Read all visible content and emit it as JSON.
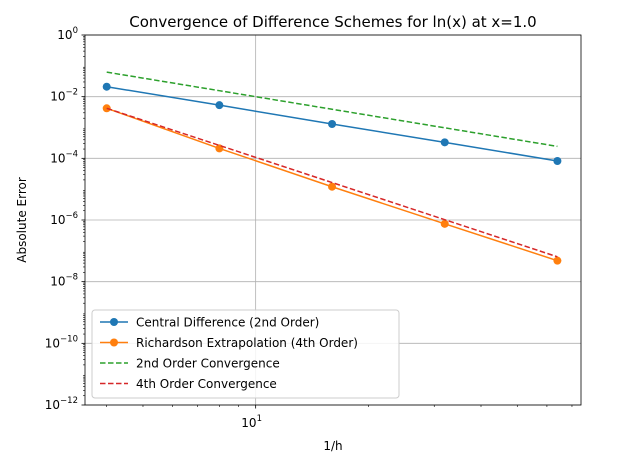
{
  "chart_data": {
    "type": "line",
    "title": "Convergence of Difference Schemes for ln(x) at x=1.0",
    "xlabel": "1/h",
    "ylabel": "Absolute Error",
    "xscale": "log",
    "yscale": "log",
    "xlim": [
      3.5,
      74
    ],
    "ylim": [
      1e-12,
      1
    ],
    "grid": true,
    "legend_position": "lower-left",
    "x_ticks": [
      {
        "value": 10,
        "base": "10",
        "exp": "1"
      }
    ],
    "y_ticks": [
      {
        "value": 1,
        "base": "10",
        "exp": "0"
      },
      {
        "value": 0.01,
        "base": "10",
        "exp": "−2"
      },
      {
        "value": 0.0001,
        "base": "10",
        "exp": "−4"
      },
      {
        "value": 1e-06,
        "base": "10",
        "exp": "−6"
      },
      {
        "value": 1e-08,
        "base": "10",
        "exp": "−8"
      },
      {
        "value": 1e-10,
        "base": "10",
        "exp": "−10"
      },
      {
        "value": 1e-12,
        "base": "10",
        "exp": "−12"
      }
    ],
    "series": [
      {
        "name": "Central Difference (2nd Order)",
        "color": "#1f77b4",
        "style": "solid",
        "marker": "circle",
        "x": [
          4,
          8,
          16,
          32,
          64
        ],
        "y": [
          0.021,
          0.0053,
          0.0013,
          0.00033,
          8.2e-05
        ]
      },
      {
        "name": "Richardson Extrapolation (4th Order)",
        "color": "#ff7f0e",
        "style": "solid",
        "marker": "circle",
        "x": [
          4,
          8,
          16,
          32,
          64
        ],
        "y": [
          0.0042,
          0.00021,
          1.2e-05,
          7.5e-07,
          4.8e-08
        ]
      },
      {
        "name": "2nd Order Convergence",
        "color": "#2ca02c",
        "style": "dashed",
        "marker": "none",
        "x": [
          4,
          8,
          16,
          32,
          64
        ],
        "y": [
          0.0625,
          0.015625,
          0.00390625,
          0.0009765625,
          0.000244140625
        ]
      },
      {
        "name": "4th Order Convergence",
        "color": "#d62728",
        "style": "dashed",
        "marker": "none",
        "x": [
          4,
          8,
          16,
          32,
          64
        ],
        "y": [
          0.0042,
          0.0002625,
          1.64e-05,
          1.025e-06,
          6.4e-08
        ]
      }
    ]
  }
}
